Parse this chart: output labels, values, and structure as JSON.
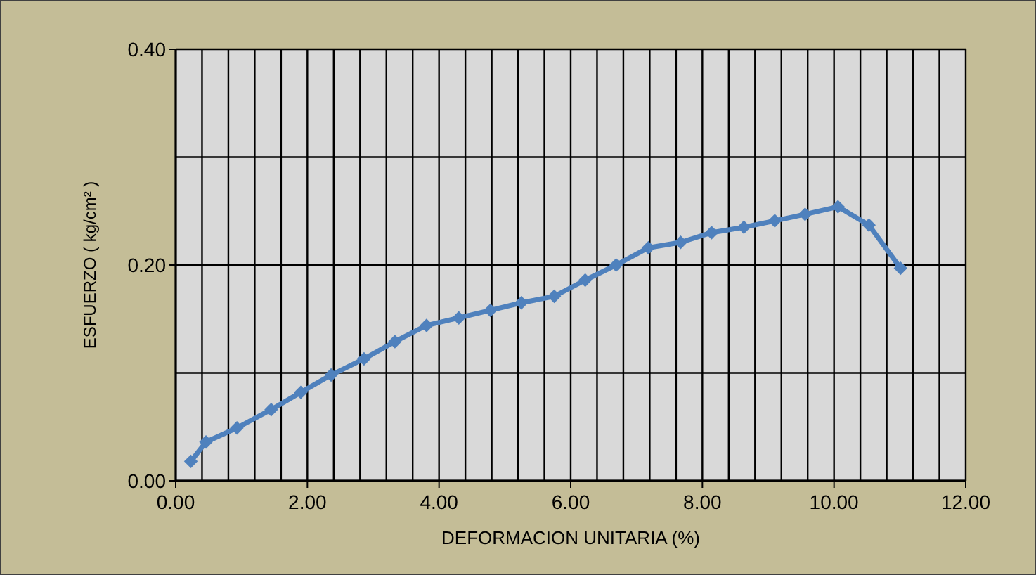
{
  "chart_data": {
    "type": "line",
    "xlabel": "DEFORMACION UNITARIA (%)",
    "ylabel": "ESFUERZO ( kg/cm² )",
    "series": [
      {
        "color": "#4f81bd",
        "x": [
          0.23,
          0.46,
          0.93,
          1.45,
          1.9,
          2.36,
          2.86,
          3.33,
          3.81,
          4.3,
          4.78,
          5.25,
          5.75,
          6.22,
          6.69,
          7.18,
          7.67,
          8.14,
          8.63,
          9.1,
          9.56,
          10.06,
          10.53,
          11.01
        ],
        "values": [
          0.018,
          0.036,
          0.049,
          0.066,
          0.082,
          0.098,
          0.113,
          0.129,
          0.144,
          0.151,
          0.158,
          0.165,
          0.171,
          0.186,
          0.2,
          0.216,
          0.221,
          0.23,
          0.235,
          0.241,
          0.247,
          0.254,
          0.237,
          0.197
        ]
      }
    ],
    "xlim": [
      0,
      12
    ],
    "xticks": [
      {
        "value": 0,
        "label": "0.00"
      },
      {
        "value": 0.4,
        "label": null
      },
      {
        "value": 0.8,
        "label": null
      },
      {
        "value": 1.2,
        "label": null
      },
      {
        "value": 1.6,
        "label": null
      },
      {
        "value": 2,
        "label": "2.00"
      },
      {
        "value": 2.4,
        "label": null
      },
      {
        "value": 2.8,
        "label": null
      },
      {
        "value": 3.2,
        "label": null
      },
      {
        "value": 3.6,
        "label": null
      },
      {
        "value": 4,
        "label": "4.00"
      },
      {
        "value": 4.4,
        "label": null
      },
      {
        "value": 4.8,
        "label": null
      },
      {
        "value": 5.2,
        "label": null
      },
      {
        "value": 5.6,
        "label": null
      },
      {
        "value": 6,
        "label": "6.00"
      },
      {
        "value": 6.4,
        "label": null
      },
      {
        "value": 6.8,
        "label": null
      },
      {
        "value": 7.2,
        "label": null
      },
      {
        "value": 7.6,
        "label": null
      },
      {
        "value": 8,
        "label": "8.00"
      },
      {
        "value": 8.4,
        "label": null
      },
      {
        "value": 8.8,
        "label": null
      },
      {
        "value": 9.2,
        "label": null
      },
      {
        "value": 9.6,
        "label": null
      },
      {
        "value": 10,
        "label": "10.00"
      },
      {
        "value": 10.4,
        "label": null
      },
      {
        "value": 10.8,
        "label": null
      },
      {
        "value": 11.2,
        "label": null
      },
      {
        "value": 11.6,
        "label": null
      },
      {
        "value": 12,
        "label": "12.00"
      }
    ],
    "ylim": [
      0,
      0.4
    ],
    "yticks": [
      {
        "value": 0,
        "label": "0.00"
      },
      {
        "value": 0.1,
        "label": null
      },
      {
        "value": 0.2,
        "label": "0.20"
      },
      {
        "value": 0.3,
        "label": null
      },
      {
        "value": 0.4,
        "label": "0.40"
      }
    ],
    "grid": true,
    "marker": "diamond",
    "line_style": "solid"
  }
}
